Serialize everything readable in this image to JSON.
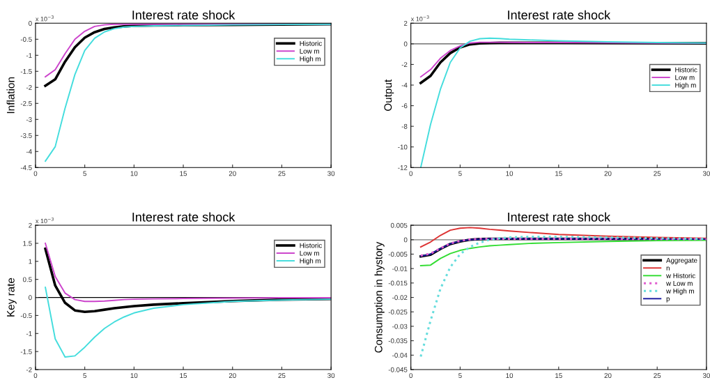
{
  "chart_data": [
    {
      "type": "line",
      "title": "Interest rate shock",
      "ylabel": "Inflation",
      "annotations": [
        "x 10$^{−3}$"
      ],
      "x": [
        1,
        2,
        3,
        4,
        5,
        6,
        7,
        8,
        9,
        10,
        12,
        15,
        20,
        25,
        30
      ],
      "xlim": [
        0,
        30
      ],
      "xticks": [
        0,
        5,
        10,
        15,
        20,
        25,
        30
      ],
      "ylim": [
        -4.5,
        0
      ],
      "yticks": [
        -4.5,
        -4,
        -3.5,
        -3,
        -2.5,
        -2,
        -1.5,
        -1,
        -0.5,
        0
      ],
      "legend": "top right",
      "grid": false,
      "series": [
        {
          "name": "Historic",
          "color": "#000000",
          "values": [
            -1.95,
            -1.75,
            -1.2,
            -0.75,
            -0.45,
            -0.28,
            -0.18,
            -0.13,
            -0.1,
            -0.08,
            -0.07,
            -0.06,
            -0.05,
            -0.04,
            -0.03
          ]
        },
        {
          "name": "Low m",
          "color": "#cc44cc",
          "values": [
            -1.67,
            -1.45,
            -0.95,
            -0.5,
            -0.25,
            -0.1,
            -0.05,
            -0.03,
            -0.03,
            -0.03,
            -0.03,
            -0.03,
            -0.03,
            -0.03,
            -0.03
          ]
        },
        {
          "name": "High m",
          "color": "#44dddd",
          "values": [
            -4.3,
            -3.85,
            -2.65,
            -1.6,
            -0.85,
            -0.47,
            -0.27,
            -0.17,
            -0.12,
            -0.1,
            -0.08,
            -0.07,
            -0.05,
            -0.04,
            -0.03
          ]
        }
      ]
    },
    {
      "type": "line",
      "title": "Interest rate shock",
      "ylabel": "Output",
      "annotations": [
        "x 10$^{−3}$"
      ],
      "x": [
        1,
        2,
        3,
        4,
        5,
        6,
        7,
        8,
        9,
        10,
        12,
        15,
        20,
        25,
        30
      ],
      "xlim": [
        0,
        30
      ],
      "xticks": [
        0,
        5,
        10,
        15,
        20,
        25,
        30
      ],
      "ylim": [
        -12,
        2
      ],
      "yticks": [
        -12,
        -10,
        -8,
        -6,
        -4,
        -2,
        0,
        2
      ],
      "legend": "right",
      "grid": false,
      "ref_lines": [
        {
          "axis": "y",
          "value": 0,
          "color": "#555555"
        }
      ],
      "series": [
        {
          "name": "Historic",
          "color": "#000000",
          "values": [
            -3.8,
            -3.1,
            -1.8,
            -0.9,
            -0.35,
            -0.05,
            0.05,
            0.08,
            0.1,
            0.1,
            0.1,
            0.1,
            0.08,
            0.06,
            0.05
          ]
        },
        {
          "name": "Low m",
          "color": "#cc44cc",
          "values": [
            -3.2,
            -2.5,
            -1.4,
            -0.65,
            -0.2,
            0.08,
            0.15,
            0.15,
            0.15,
            0.14,
            0.13,
            0.12,
            0.1,
            0.07,
            0.05
          ]
        },
        {
          "name": "High m",
          "color": "#44dddd",
          "values": [
            -12,
            -7.8,
            -4.4,
            -1.8,
            -0.4,
            0.25,
            0.5,
            0.55,
            0.52,
            0.45,
            0.38,
            0.3,
            0.2,
            0.13,
            0.08
          ]
        }
      ]
    },
    {
      "type": "line",
      "title": "Interest rate shock",
      "ylabel": "Key rate",
      "annotations": [
        "x 10$^{−3}$"
      ],
      "x": [
        1,
        2,
        3,
        4,
        5,
        6,
        7,
        8,
        9,
        10,
        12,
        15,
        20,
        25,
        30
      ],
      "xlim": [
        0,
        30
      ],
      "xticks": [
        0,
        5,
        10,
        15,
        20,
        25,
        30
      ],
      "ylim": [
        -2,
        2
      ],
      "yticks": [
        -2,
        -1.5,
        -1,
        -0.5,
        0,
        0.5,
        1,
        1.5,
        2
      ],
      "legend": "top right",
      "grid": false,
      "ref_lines": [
        {
          "axis": "y",
          "value": 0,
          "color": "#000000"
        }
      ],
      "series": [
        {
          "name": "Historic",
          "color": "#000000",
          "values": [
            1.35,
            0.33,
            -0.15,
            -0.36,
            -0.4,
            -0.38,
            -0.34,
            -0.3,
            -0.27,
            -0.24,
            -0.2,
            -0.16,
            -0.1,
            -0.06,
            -0.04
          ]
        },
        {
          "name": "Low m",
          "color": "#cc44cc",
          "values": [
            1.5,
            0.58,
            0.12,
            -0.06,
            -0.11,
            -0.11,
            -0.1,
            -0.08,
            -0.06,
            -0.05,
            -0.04,
            -0.03,
            -0.02,
            -0.01,
            -0.01
          ]
        },
        {
          "name": "High m",
          "color": "#44dddd",
          "values": [
            0.28,
            -1.15,
            -1.65,
            -1.62,
            -1.38,
            -1.1,
            -0.86,
            -0.68,
            -0.54,
            -0.43,
            -0.3,
            -0.2,
            -0.11,
            -0.07,
            -0.05
          ]
        }
      ]
    },
    {
      "type": "line",
      "title": "Interest rate shock",
      "ylabel": "Consumption in hystory",
      "x": [
        1,
        2,
        3,
        4,
        5,
        6,
        7,
        8,
        9,
        10,
        12,
        15,
        20,
        25,
        30
      ],
      "xlim": [
        0,
        30
      ],
      "xticks": [
        0,
        5,
        10,
        15,
        20,
        25,
        30
      ],
      "ylim": [
        -0.045,
        0.005
      ],
      "yticks": [
        -0.045,
        -0.04,
        -0.035,
        -0.03,
        -0.025,
        -0.02,
        -0.015,
        -0.01,
        -0.005,
        0,
        0.005
      ],
      "legend": "right",
      "grid": false,
      "ref_lines": [
        {
          "axis": "y",
          "value": 0,
          "color": "#777777"
        }
      ],
      "series": [
        {
          "name": "Aggregate",
          "color": "#000000",
          "values": [
            -0.0058,
            -0.0052,
            -0.0032,
            -0.0015,
            -0.0006,
            0,
            0.0002,
            0.0003,
            0.0003,
            0.0003,
            0.0003,
            0.0003,
            0.0003,
            0.0002,
            0.0002
          ]
        },
        {
          "name": "n",
          "color": "#dd3333",
          "values": [
            -0.0025,
            -0.0008,
            0.0015,
            0.0033,
            0.004,
            0.0042,
            0.004,
            0.0036,
            0.0033,
            0.003,
            0.0025,
            0.0018,
            0.0012,
            0.0008,
            0.0005
          ]
        },
        {
          "name": "w Historic",
          "color": "#33dd33",
          "values": [
            -0.009,
            -0.0088,
            -0.0065,
            -0.0048,
            -0.0037,
            -0.003,
            -0.0025,
            -0.0021,
            -0.0019,
            -0.0017,
            -0.0013,
            -0.001,
            -0.0006,
            -0.0003,
            -0.0002
          ]
        },
        {
          "name": "w Low m",
          "color": "#e060d0",
          "line_style": "dotted",
          "values": [
            -0.0055,
            -0.0048,
            -0.003,
            -0.0013,
            -0.0004,
            0.0001,
            0.0003,
            0.0003,
            0.0003,
            0.0003,
            0.0003,
            0.0003,
            0.0003,
            0.0002,
            0.0002
          ]
        },
        {
          "name": "w High m",
          "color": "#66dddd",
          "line_style": "dotted",
          "values": [
            -0.0405,
            -0.028,
            -0.017,
            -0.0095,
            -0.005,
            -0.0025,
            -0.001,
            0,
            0.0005,
            0.0008,
            0.001,
            0.001,
            0.0008,
            0.0005,
            0.0003
          ]
        },
        {
          "name": "p",
          "color": "#1a1aa0",
          "values": [
            -0.0057,
            -0.005,
            -0.0031,
            -0.0014,
            -0.0005,
            0,
            0.0002,
            0.0003,
            0.0003,
            0.0003,
            0.0003,
            0.0003,
            0.0003,
            0.0002,
            0.0002
          ]
        }
      ]
    }
  ]
}
